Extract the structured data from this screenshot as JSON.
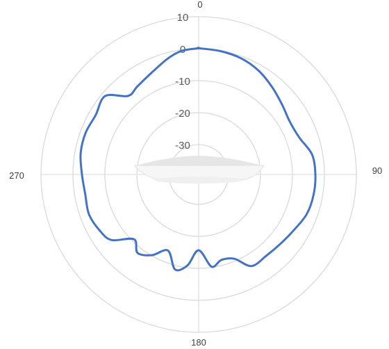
{
  "chart_data": {
    "type": "line",
    "subtype": "radar",
    "title": "",
    "angle_ticks": [
      "0",
      "90",
      "180",
      "270"
    ],
    "radial_ticks": [
      "10",
      "0",
      "-10",
      "-20",
      "-30"
    ],
    "rlim": [
      -40,
      10
    ],
    "grid": true,
    "legend": "none",
    "series": [
      {
        "color": "#4472c4",
        "points": [
          {
            "angle": 0,
            "value": 0.0
          },
          {
            "angle": 10,
            "value": -0.3
          },
          {
            "angle": 20,
            "value": -0.8
          },
          {
            "angle": 30,
            "value": -2.0
          },
          {
            "angle": 40,
            "value": -3.8
          },
          {
            "angle": 50,
            "value": -5.5
          },
          {
            "angle": 60,
            "value": -6.6
          },
          {
            "angle": 70,
            "value": -6.0
          },
          {
            "angle": 80,
            "value": -3.5
          },
          {
            "angle": 90,
            "value": -3.0
          },
          {
            "angle": 100,
            "value": -3.0
          },
          {
            "angle": 110,
            "value": -3.5
          },
          {
            "angle": 120,
            "value": -5.0
          },
          {
            "angle": 130,
            "value": -6.0
          },
          {
            "angle": 140,
            "value": -6.5
          },
          {
            "angle": 150,
            "value": -6.5
          },
          {
            "angle": 157,
            "value": -11.0
          },
          {
            "angle": 165,
            "value": -12.0
          },
          {
            "angle": 172,
            "value": -10.5
          },
          {
            "angle": 180,
            "value": -16.0
          },
          {
            "angle": 187,
            "value": -11.0
          },
          {
            "angle": 194,
            "value": -9.0
          },
          {
            "angle": 202,
            "value": -14.0
          },
          {
            "angle": 210,
            "value": -10.5
          },
          {
            "angle": 218,
            "value": -8.5
          },
          {
            "angle": 225,
            "value": -11.0
          },
          {
            "angle": 233,
            "value": -5.5
          },
          {
            "angle": 240,
            "value": -4.0
          },
          {
            "angle": 250,
            "value": -3.0
          },
          {
            "angle": 260,
            "value": -3.5
          },
          {
            "angle": 270,
            "value": -3.0
          },
          {
            "angle": 280,
            "value": -2.0
          },
          {
            "angle": 290,
            "value": -1.8
          },
          {
            "angle": 300,
            "value": -2.3
          },
          {
            "angle": 310,
            "value": -1.3
          },
          {
            "angle": 318,
            "value": -6.5
          },
          {
            "angle": 325,
            "value": -6.0
          },
          {
            "angle": 335,
            "value": -4.5
          },
          {
            "angle": 345,
            "value": -2.0
          },
          {
            "angle": 352,
            "value": -0.5
          },
          {
            "angle": 360,
            "value": 0.0
          }
        ]
      }
    ]
  }
}
